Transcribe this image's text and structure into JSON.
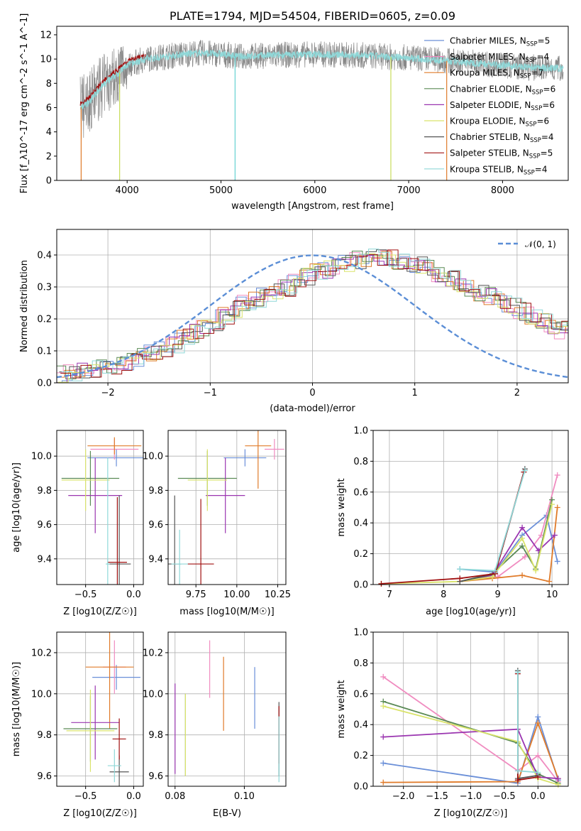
{
  "chart_data": [
    {
      "type": "line",
      "title": "PLATE=1794, MJD=54504, FIBERID=0605, z=0.09",
      "xlabel": "wavelength [Angstrom, rest frame]",
      "ylabel": "Flux [f_λ10^-17 erg cm^-2 s^-1 A^-1]",
      "xlim": [
        3250,
        8700
      ],
      "ylim": [
        0,
        12.7
      ],
      "xticks": [
        4000,
        5000,
        6000,
        7000,
        8000
      ],
      "yticks": [
        0,
        2,
        4,
        6,
        8,
        10,
        12
      ],
      "grid": false,
      "legend_position": "right",
      "spectrum_envelope": {
        "x": [
          3500,
          3600,
          3700,
          3800,
          3900,
          4000,
          4200,
          4400,
          4600,
          4800,
          5000,
          5200,
          5500,
          6000,
          6500,
          7000,
          7500,
          8000,
          8300,
          8700
        ],
        "y": [
          6.0,
          6.5,
          7.5,
          8.2,
          8.8,
          9.5,
          10.0,
          10.2,
          10.4,
          10.5,
          10.4,
          10.2,
          10.3,
          10.4,
          10.3,
          10.1,
          9.8,
          9.5,
          9.3,
          9.2
        ]
      },
      "spikes": [
        {
          "x": 3510,
          "y": 0,
          "color": "#e07b2a"
        },
        {
          "x": 3920,
          "y": 0,
          "color": "#c8dc5a"
        },
        {
          "x": 5150,
          "y": 0,
          "color": "#66d2d2"
        },
        {
          "x": 6810,
          "y": 0,
          "color": "#c8dc5a"
        },
        {
          "x": 7405,
          "y": 0,
          "color": "#e07b2a"
        }
      ],
      "series": [
        {
          "name": "Chabrier MILES, N_SSP=5",
          "label_main": "Chabrier MILES, N",
          "label_sub": "SSP",
          "label_tail": "=5",
          "color": "#6a8fd8"
        },
        {
          "name": "Salpeter MILES, N_SSP=4",
          "label_main": "Salpeter MILES, N",
          "label_sub": "SSP",
          "label_tail": "=4",
          "color": "#f08cc0"
        },
        {
          "name": "Kroupa MILES, N_SSP=7",
          "label_main": "Kroupa MILES, N",
          "label_sub": "SSP",
          "label_tail": "=7",
          "color": "#e07b2a"
        },
        {
          "name": "Chabrier ELODIE, N_SSP=6",
          "label_main": "Chabrier ELODIE, N",
          "label_sub": "SSP",
          "label_tail": "=6",
          "color": "#5a8a55"
        },
        {
          "name": "Salpeter ELODIE, N_SSP=6",
          "label_main": "Salpeter ELODIE, N",
          "label_sub": "SSP",
          "label_tail": "=6",
          "color": "#9a35b0"
        },
        {
          "name": "Kroupa ELODIE, N_SSP=6",
          "label_main": "Kroupa ELODIE, N",
          "label_sub": "SSP",
          "label_tail": "=6",
          "color": "#d9e36a"
        },
        {
          "name": "Chabrier STELIB, N_SSP=4",
          "label_main": "Chabrier STELIB, N",
          "label_sub": "SSP",
          "label_tail": "=4",
          "color": "#555555"
        },
        {
          "name": "Salpeter STELIB, N_SSP=5",
          "label_main": "Salpeter STELIB, N",
          "label_sub": "SSP",
          "label_tail": "=5",
          "color": "#a01010"
        },
        {
          "name": "Kroupa STELIB, N_SSP=4",
          "label_main": "Kroupa STELIB, N",
          "label_sub": "SSP",
          "label_tail": "=4",
          "color": "#8fd8d8"
        }
      ],
      "data_color": "#888888"
    },
    {
      "type": "histogram",
      "xlabel": "(data-model)/error",
      "ylabel": "Normed distribution",
      "xlim": [
        -2.5,
        2.5
      ],
      "ylim": [
        0,
        0.48
      ],
      "xticks": [
        -2,
        -1,
        0,
        1,
        2
      ],
      "yticks": [
        0.0,
        0.1,
        0.2,
        0.3,
        0.4
      ],
      "grid": true,
      "legend": "𝒩(0, 1)",
      "legend_position": "top-right",
      "normal_curve": {
        "mean": 0,
        "std": 1,
        "color": "#5b8ed6"
      },
      "bin_width": 0.1,
      "bin_start": -2.5,
      "base_values": [
        0.03,
        0.032,
        0.035,
        0.04,
        0.045,
        0.05,
        0.06,
        0.068,
        0.078,
        0.09,
        0.105,
        0.12,
        0.14,
        0.155,
        0.17,
        0.19,
        0.21,
        0.23,
        0.245,
        0.26,
        0.27,
        0.285,
        0.3,
        0.315,
        0.33,
        0.345,
        0.355,
        0.365,
        0.375,
        0.385,
        0.39,
        0.392,
        0.39,
        0.385,
        0.375,
        0.365,
        0.355,
        0.345,
        0.33,
        0.315,
        0.3,
        0.285,
        0.27,
        0.255,
        0.24,
        0.225,
        0.21,
        0.195,
        0.18,
        0.165,
        0.15,
        0.135,
        0.12,
        0.105,
        0.095,
        0.085,
        0.075,
        0.065,
        0.055,
        0.045,
        0.04,
        0.035,
        0.03,
        0.025,
        0.022,
        0.02,
        0.018,
        0.016,
        0.014,
        0.012
      ],
      "series_colors": [
        "#6a8fd8",
        "#f08cc0",
        "#e07b2a",
        "#5a8a55",
        "#9a35b0",
        "#d9e36a",
        "#555555",
        "#a01010",
        "#8fd8d8"
      ]
    },
    {
      "type": "errorbar",
      "xlabel": "Z [log10(Z/Z☉)]",
      "ylabel": "age  [log10(age/yr)]",
      "xlim": [
        -0.8,
        0.1
      ],
      "ylim": [
        9.25,
        10.15
      ],
      "xticks": [
        -0.5,
        0.0
      ],
      "yticks": [
        9.4,
        9.6,
        9.8,
        10.0
      ],
      "grid": true,
      "points": [
        {
          "x": -0.18,
          "xerr": 0.3,
          "y": 9.99,
          "yerr": 0.05,
          "color": "#6a8fd8"
        },
        {
          "x": -0.2,
          "xerr": 0.25,
          "y": 10.04,
          "yerr": 0.06,
          "color": "#f08cc0"
        },
        {
          "x": -0.2,
          "xerr": 0.28,
          "y": 10.06,
          "yerr": 0.05,
          "color": "#e07b2a"
        },
        {
          "x": -0.45,
          "xerr": 0.3,
          "y": 9.87,
          "yerr": 0.16,
          "color": "#5a8a55"
        },
        {
          "x": -0.4,
          "xerr": 0.28,
          "y": 9.77,
          "yerr": 0.22,
          "color": "#9a35b0"
        },
        {
          "x": -0.5,
          "xerr": 0.25,
          "y": 9.86,
          "yerr": 0.18,
          "color": "#d9e36a"
        },
        {
          "x": -0.15,
          "xerr": 0.12,
          "y": 9.37,
          "yerr": 0.4,
          "color": "#555555"
        },
        {
          "x": -0.17,
          "xerr": 0.1,
          "y": 9.38,
          "yerr": 0.38,
          "color": "#a01010"
        },
        {
          "x": -0.27,
          "xerr": 0.02,
          "y": 9.37,
          "yerr": 0.62,
          "color": "#8fd8d8"
        }
      ]
    },
    {
      "type": "errorbar",
      "xlabel": "mass [log10(M/M☉)]",
      "ylim": [
        9.25,
        10.15
      ],
      "xlim": [
        9.58,
        10.3
      ],
      "xticks": [
        9.75,
        10.0,
        10.25
      ],
      "yticks": [
        9.4,
        9.6,
        9.8,
        10.0
      ],
      "grid": true,
      "points": [
        {
          "x": 10.05,
          "xerr": 0.13,
          "y": 9.99,
          "yerr": 0.05,
          "color": "#6a8fd8"
        },
        {
          "x": 10.23,
          "xerr": 0.06,
          "y": 10.04,
          "yerr": 0.06,
          "color": "#f08cc0"
        },
        {
          "x": 10.13,
          "xerr": 0.08,
          "y": 10.06,
          "yerr": 0.25,
          "color": "#e07b2a"
        },
        {
          "x": 9.82,
          "xerr": 0.18,
          "y": 9.87,
          "yerr": 0.16,
          "color": "#5a8a55"
        },
        {
          "x": 9.93,
          "xerr": 0.12,
          "y": 9.77,
          "yerr": 0.22,
          "color": "#9a35b0"
        },
        {
          "x": 9.82,
          "xerr": 0.12,
          "y": 9.86,
          "yerr": 0.18,
          "color": "#d9e36a"
        },
        {
          "x": 9.62,
          "xerr": 0.04,
          "y": 9.37,
          "yerr": 0.4,
          "color": "#555555"
        },
        {
          "x": 9.78,
          "xerr": 0.08,
          "y": 9.37,
          "yerr": 0.38,
          "color": "#a01010"
        },
        {
          "x": 9.65,
          "xerr": 0.05,
          "y": 9.37,
          "yerr": 0.2,
          "color": "#8fd8d8"
        }
      ]
    },
    {
      "type": "line",
      "xlabel": "age  [log10(age/yr)]",
      "ylabel": "mass weight",
      "xlim": [
        6.7,
        10.3
      ],
      "ylim": [
        0,
        1.0
      ],
      "xticks": [
        7,
        8,
        9,
        10
      ],
      "yticks": [
        0.0,
        0.2,
        0.4,
        0.6,
        0.8,
        1.0
      ],
      "grid": true,
      "series": [
        {
          "color": "#6a8fd8",
          "x": [
            8.3,
            8.95,
            9.45,
            9.9,
            10.1
          ],
          "y": [
            0.1,
            0.08,
            0.32,
            0.45,
            0.15
          ]
        },
        {
          "color": "#f08cc0",
          "x": [
            8.3,
            9.0,
            9.5,
            9.8,
            10.1
          ],
          "y": [
            0.02,
            0.05,
            0.18,
            0.32,
            0.71
          ]
        },
        {
          "color": "#e07b2a",
          "x": [
            8.3,
            8.9,
            9.45,
            9.95,
            10.1
          ],
          "y": [
            0.02,
            0.04,
            0.06,
            0.02,
            0.5
          ]
        },
        {
          "color": "#5a8a55",
          "x": [
            8.3,
            8.9,
            9.45,
            9.7,
            10.0
          ],
          "y": [
            0.02,
            0.07,
            0.25,
            0.1,
            0.55
          ]
        },
        {
          "color": "#9a35b0",
          "x": [
            8.3,
            8.9,
            9.45,
            9.75,
            10.05
          ],
          "y": [
            0.02,
            0.06,
            0.37,
            0.22,
            0.32
          ]
        },
        {
          "color": "#d9e36a",
          "x": [
            6.85,
            8.3,
            8.9,
            9.45,
            9.7,
            10.0
          ],
          "y": [
            0.005,
            0.02,
            0.05,
            0.3,
            0.09,
            0.52
          ]
        },
        {
          "color": "#555555",
          "x": [
            8.3,
            8.95,
            9.5
          ],
          "y": [
            0.02,
            0.07,
            0.75
          ]
        },
        {
          "color": "#a01010",
          "x": [
            6.85,
            8.3,
            8.95,
            9.48
          ],
          "y": [
            0.005,
            0.04,
            0.07,
            0.73
          ]
        },
        {
          "color": "#8fd8d8",
          "x": [
            8.3,
            8.95,
            9.5
          ],
          "y": [
            0.1,
            0.09,
            0.74
          ]
        }
      ]
    },
    {
      "type": "errorbar",
      "xlabel": "Z [log10(Z/Z☉)]",
      "ylabel": "mass [log10(M/M☉)]",
      "xlim": [
        -0.8,
        0.1
      ],
      "ylim": [
        9.55,
        10.3
      ],
      "xticks": [
        -0.5,
        0.0
      ],
      "yticks": [
        9.6,
        9.8,
        10.0,
        10.2
      ],
      "grid": true,
      "points": [
        {
          "x": -0.18,
          "xerr": 0.25,
          "y": 10.08,
          "yerr": 0.06,
          "color": "#6a8fd8"
        },
        {
          "x": -0.2,
          "xerr": 0.12,
          "y": 10.13,
          "yerr": 0.13,
          "color": "#f08cc0"
        },
        {
          "x": -0.25,
          "xerr": 0.25,
          "y": 10.13,
          "yerr": 0.3,
          "color": "#e07b2a"
        },
        {
          "x": -0.45,
          "xerr": 0.28,
          "y": 9.83,
          "yerr": 0.16,
          "color": "#5a8a55"
        },
        {
          "x": -0.4,
          "xerr": 0.25,
          "y": 9.86,
          "yerr": 0.18,
          "color": "#9a35b0"
        },
        {
          "x": -0.45,
          "xerr": 0.25,
          "y": 9.82,
          "yerr": 0.2,
          "color": "#d9e36a"
        },
        {
          "x": -0.15,
          "xerr": 0.1,
          "y": 9.62,
          "yerr": 0.08,
          "color": "#555555"
        },
        {
          "x": -0.15,
          "xerr": 0.07,
          "y": 9.78,
          "yerr": 0.1,
          "color": "#a01010"
        },
        {
          "x": -0.2,
          "xerr": 0.07,
          "y": 9.65,
          "yerr": 0.08,
          "color": "#8fd8d8"
        }
      ]
    },
    {
      "type": "errorbar",
      "xlabel": "E(B-V)",
      "xlim": [
        0.078,
        0.112
      ],
      "ylim": [
        9.55,
        10.3
      ],
      "xticks": [
        0.08,
        0.1
      ],
      "yticks": [
        9.6,
        9.8,
        10.0,
        10.2
      ],
      "grid": true,
      "points": [
        {
          "x": 0.103,
          "xerr": 0,
          "y": 9.98,
          "yerr": 0.15,
          "color": "#6a8fd8"
        },
        {
          "x": 0.09,
          "xerr": 0,
          "y": 10.12,
          "yerr": 0.14,
          "color": "#f08cc0"
        },
        {
          "x": 0.094,
          "xerr": 0,
          "y": 10.0,
          "yerr": 0.18,
          "color": "#e07b2a"
        },
        {
          "x": 0.083,
          "xerr": 0,
          "y": 9.8,
          "yerr": 0.2,
          "color": "#5a8a55"
        },
        {
          "x": 0.08,
          "xerr": 0,
          "y": 9.83,
          "yerr": 0.22,
          "color": "#9a35b0"
        },
        {
          "x": 0.083,
          "xerr": 0,
          "y": 9.8,
          "yerr": 0.2,
          "color": "#d9e36a"
        },
        {
          "x": 0.11,
          "xerr": 0,
          "y": 9.78,
          "yerr": 0.18,
          "color": "#555555"
        },
        {
          "x": 0.11,
          "xerr": 0,
          "y": 9.8,
          "yerr": 0.14,
          "color": "#a01010"
        },
        {
          "x": 0.11,
          "xerr": 0,
          "y": 9.73,
          "yerr": 0.16,
          "color": "#8fd8d8"
        }
      ]
    },
    {
      "type": "line",
      "xlabel": "Z [log10(Z/Z☉)]",
      "ylabel": "mass weight",
      "xlim": [
        -2.45,
        0.45
      ],
      "ylim": [
        0,
        1.0
      ],
      "xticks": [
        -2.0,
        -1.5,
        -1.0,
        -0.5,
        0.0
      ],
      "yticks": [
        0.0,
        0.2,
        0.4,
        0.6,
        0.8,
        1.0
      ],
      "grid": true,
      "series": [
        {
          "color": "#6a8fd8",
          "x": [
            -2.3,
            -0.3,
            0.0,
            0.3
          ],
          "y": [
            0.15,
            0.02,
            0.45,
            0.04
          ]
        },
        {
          "color": "#f08cc0",
          "x": [
            -2.3,
            -0.3,
            0.0,
            0.3
          ],
          "y": [
            0.71,
            0.1,
            0.2,
            0.03
          ]
        },
        {
          "color": "#e07b2a",
          "x": [
            -2.3,
            -0.3,
            0.0,
            0.3
          ],
          "y": [
            0.025,
            0.03,
            0.41,
            0.05
          ]
        },
        {
          "color": "#5a8a55",
          "x": [
            -2.3,
            -0.3,
            0.0,
            0.3
          ],
          "y": [
            0.55,
            0.28,
            0.08,
            0.02
          ]
        },
        {
          "color": "#9a35b0",
          "x": [
            -2.3,
            -0.3,
            0.0,
            0.3
          ],
          "y": [
            0.32,
            0.37,
            0.06,
            0.05
          ]
        },
        {
          "color": "#d9e36a",
          "x": [
            -2.3,
            -0.3,
            0.0,
            0.3
          ],
          "y": [
            0.52,
            0.29,
            0.05,
            0.01
          ]
        },
        {
          "color": "#555555",
          "x": [
            -0.3,
            -0.3,
            0.0
          ],
          "y": [
            0.75,
            0.05,
            0.07
          ]
        },
        {
          "color": "#a01010",
          "x": [
            -0.3,
            -0.3,
            0.0
          ],
          "y": [
            0.73,
            0.04,
            0.06
          ]
        },
        {
          "color": "#8fd8d8",
          "x": [
            -0.3,
            -0.3,
            0.0
          ],
          "y": [
            0.74,
            0.1,
            0.09
          ]
        }
      ]
    }
  ]
}
